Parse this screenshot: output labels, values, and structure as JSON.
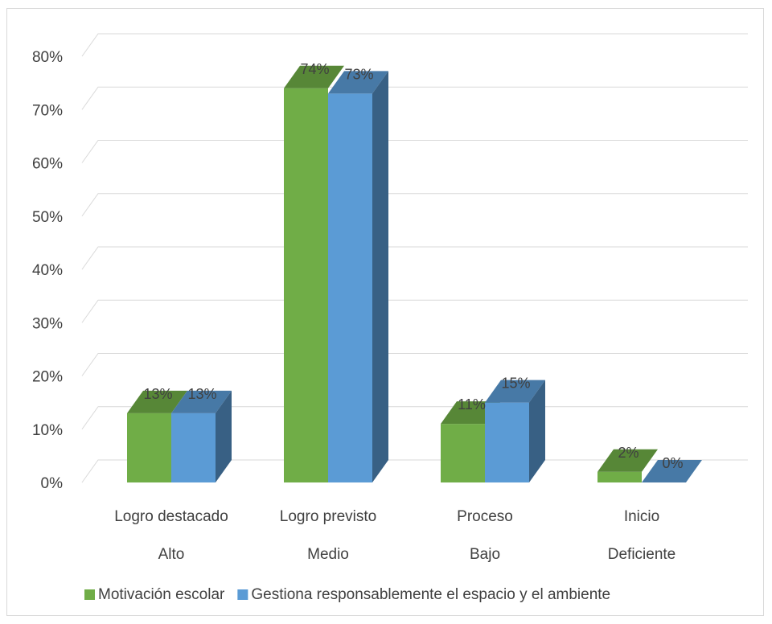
{
  "chart_data": {
    "type": "bar",
    "style": "3d-clustered-column",
    "categories": [
      {
        "line1": "Logro destacado",
        "line2": "Alto"
      },
      {
        "line1": "Logro previsto",
        "line2": "Medio"
      },
      {
        "line1": "Proceso",
        "line2": "Bajo"
      },
      {
        "line1": "Inicio",
        "line2": "Deficiente"
      }
    ],
    "series": [
      {
        "name": "Motivación escolar",
        "values": [
          13,
          74,
          11,
          2
        ],
        "labels": [
          "13%",
          "74%",
          "11%",
          "2%"
        ],
        "color": "#70ad47"
      },
      {
        "name": "Gestiona responsablemente el espacio y el ambiente",
        "values": [
          13,
          73,
          15,
          0
        ],
        "labels": [
          "13%",
          "73%",
          "15%",
          "0%"
        ],
        "color": "#5b9bd5"
      }
    ],
    "yticks": [
      "0%",
      "10%",
      "20%",
      "30%",
      "40%",
      "50%",
      "60%",
      "70%",
      "80%"
    ],
    "ylim": [
      0,
      80
    ],
    "grid": true,
    "legend_position": "bottom"
  }
}
